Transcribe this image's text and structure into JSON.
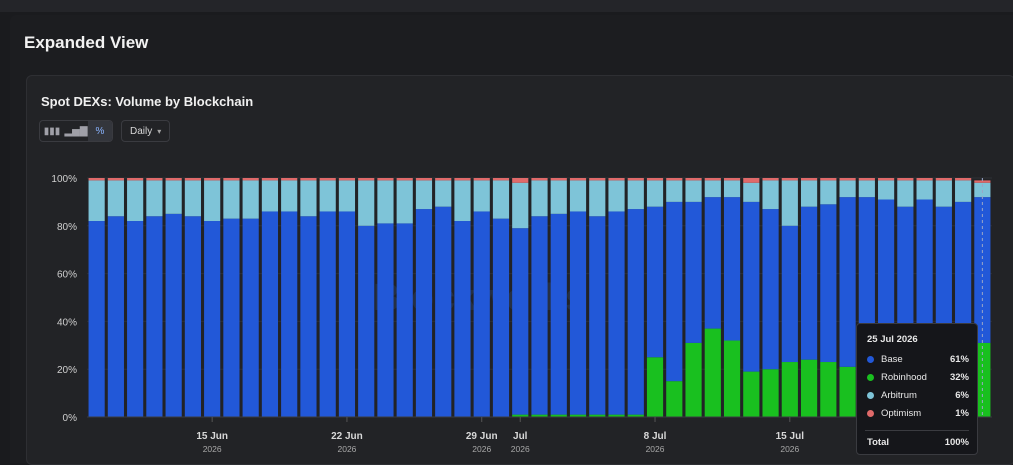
{
  "modal": {
    "title": "Expanded View"
  },
  "card": {
    "title": "Spot DEXs: Volume by Blockchain",
    "interval": "Daily"
  },
  "toolbar": {
    "icons": [
      "bar-chart-icon",
      "stacked-bar-icon",
      "percent-icon"
    ]
  },
  "colors": {
    "Base": "#2258d8",
    "Robinhood": "#19c01f",
    "Arbitrum": "#7ec4d8",
    "Optimism": "#e06a6a"
  },
  "watermark": "Blockworks",
  "tooltip": {
    "date": "25 Jul 2026",
    "rows": [
      {
        "name": "Base",
        "value": "61%"
      },
      {
        "name": "Robinhood",
        "value": "32%"
      },
      {
        "name": "Arbitrum",
        "value": "6%"
      },
      {
        "name": "Optimism",
        "value": "1%"
      }
    ],
    "total_label": "Total",
    "total_value": "100%"
  },
  "chart_data": {
    "type": "bar",
    "stacked": true,
    "normalized": true,
    "title": "Spot DEXs: Volume by Blockchain",
    "ylim": [
      0,
      100
    ],
    "yticks": [
      "0%",
      "20%",
      "40%",
      "60%",
      "80%",
      "100%"
    ],
    "xticks": [
      {
        "index": 6,
        "label": "15 Jun",
        "sub": "2026"
      },
      {
        "index": 13,
        "label": "22 Jun",
        "sub": "2026"
      },
      {
        "index": 20,
        "label": "29 Jun",
        "sub": "2026"
      },
      {
        "index": 22,
        "label": "Jul",
        "sub": "2026"
      },
      {
        "index": 29,
        "label": "8 Jul",
        "sub": "2026"
      },
      {
        "index": 36,
        "label": "15 Jul",
        "sub": "2026"
      },
      {
        "index": 43,
        "label": "",
        "sub": "2026"
      }
    ],
    "series": [
      {
        "name": "Robinhood",
        "values": [
          0,
          0,
          0,
          0,
          0,
          0,
          0,
          0,
          0,
          0,
          0,
          0,
          0,
          0,
          0,
          0,
          0,
          0,
          0,
          0,
          0,
          0,
          1,
          1,
          1,
          1,
          1,
          1,
          1,
          25,
          15,
          31,
          37,
          32,
          19,
          20,
          23,
          24,
          23,
          21,
          18,
          15,
          15,
          20,
          20,
          25,
          31
        ]
      },
      {
        "name": "Base",
        "values": [
          82,
          84,
          82,
          84,
          85,
          84,
          82,
          83,
          83,
          86,
          86,
          84,
          86,
          86,
          80,
          81,
          81,
          87,
          88,
          82,
          86,
          83,
          78,
          83,
          84,
          85,
          83,
          85,
          86,
          63,
          75,
          59,
          55,
          60,
          71,
          67,
          57,
          64,
          66,
          71,
          74,
          76,
          73,
          71,
          68,
          65,
          61
        ]
      },
      {
        "name": "Arbitrum",
        "values": [
          17,
          15,
          17,
          15,
          14,
          15,
          17,
          16,
          16,
          13,
          13,
          15,
          13,
          13,
          19,
          18,
          18,
          12,
          11,
          17,
          13,
          16,
          19,
          15,
          14,
          13,
          15,
          13,
          12,
          11,
          9,
          9,
          7,
          7,
          8,
          12,
          19,
          11,
          10,
          7,
          7,
          8,
          11,
          8,
          11,
          9,
          6
        ]
      },
      {
        "name": "Optimism",
        "values": [
          1,
          1,
          1,
          1,
          1,
          1,
          1,
          1,
          1,
          1,
          1,
          1,
          1,
          1,
          1,
          1,
          1,
          1,
          1,
          1,
          1,
          1,
          2,
          1,
          1,
          1,
          1,
          1,
          1,
          1,
          1,
          1,
          1,
          1,
          2,
          1,
          1,
          1,
          1,
          1,
          1,
          1,
          1,
          1,
          1,
          1,
          1
        ]
      }
    ]
  }
}
